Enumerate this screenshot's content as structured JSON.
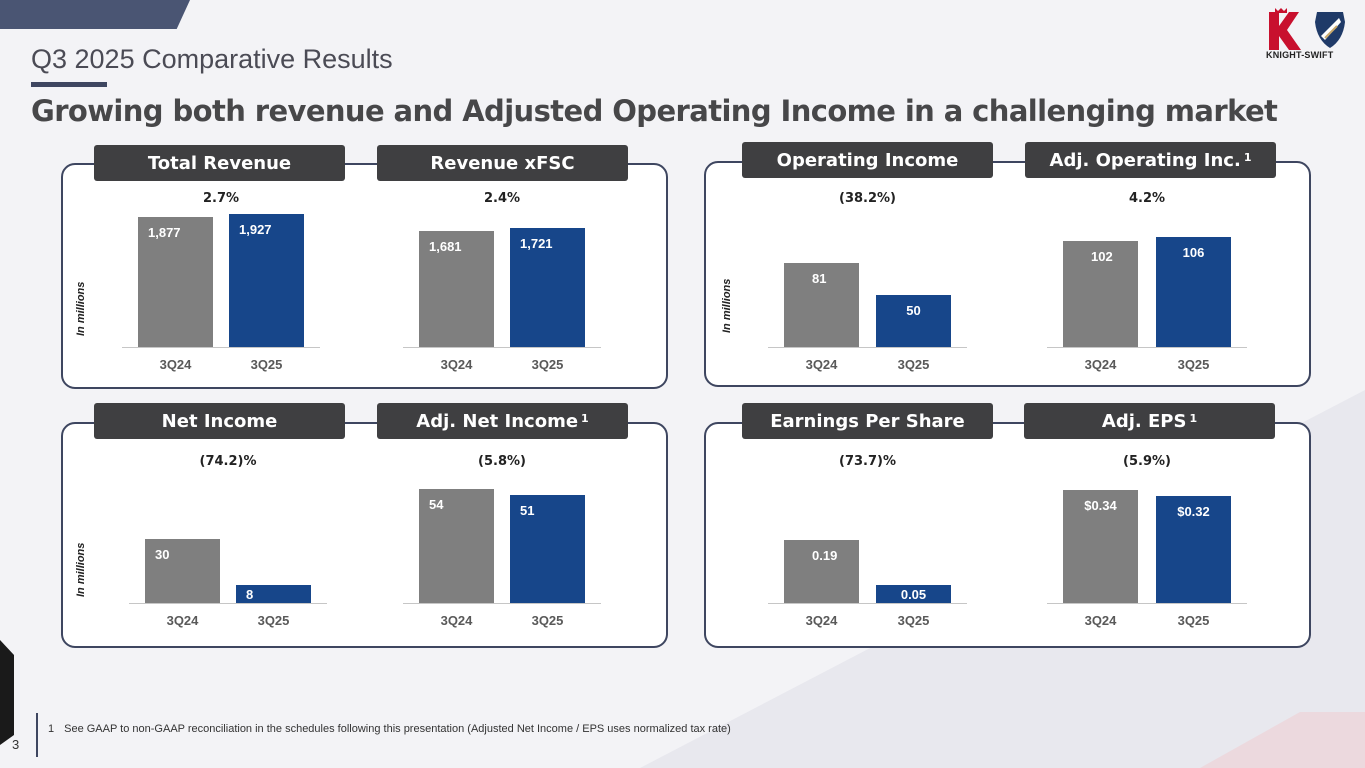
{
  "slide": {
    "title": "Q3 2025 Comparative Results",
    "headline": "Growing both revenue and Adjusted Operating Income in a challenging market",
    "logo_text": "KNIGHT-SWIFT",
    "page_number": "3",
    "footnote_number": "1",
    "footnote_text": "See GAAP to non-GAAP reconciliation in the schedules following this presentation (Adjusted Net Income / EPS uses normalized tax rate)",
    "units_label": "In millions",
    "footnote_marker": "1"
  },
  "colors": {
    "prior": "#7f7f7f",
    "current": "#17468a",
    "label_bg": "#3f3f41",
    "panel_border": "#3e4660"
  },
  "chart_data": [
    {
      "type": "bar",
      "title": "Total Revenue",
      "change": "2.7%",
      "categories": [
        "3Q24",
        "3Q25"
      ],
      "values": [
        1877,
        1927
      ],
      "value_labels": [
        "1,877",
        "1,927"
      ],
      "unit": "In millions",
      "ylim": [
        0,
        1950
      ]
    },
    {
      "type": "bar",
      "title": "Revenue xFSC",
      "change": "2.4%",
      "categories": [
        "3Q24",
        "3Q25"
      ],
      "values": [
        1681,
        1721
      ],
      "value_labels": [
        "1,681",
        "1,721"
      ],
      "unit": "In millions",
      "ylim": [
        0,
        1950
      ]
    },
    {
      "type": "bar",
      "title": "Operating Income",
      "change": "(38.2%)",
      "categories": [
        "3Q24",
        "3Q25"
      ],
      "values": [
        81,
        50
      ],
      "value_labels": [
        "81",
        "50"
      ],
      "unit": "In millions",
      "ylim": [
        0,
        130
      ]
    },
    {
      "type": "bar",
      "title": "Adj. Operating Inc.",
      "footnote": "1",
      "change": "4.2%",
      "categories": [
        "3Q24",
        "3Q25"
      ],
      "values": [
        102,
        106
      ],
      "value_labels": [
        "102",
        "106"
      ],
      "unit": "In millions",
      "ylim": [
        0,
        130
      ]
    },
    {
      "type": "bar",
      "title": "Net Income",
      "change": "(74.2)%",
      "categories": [
        "3Q24",
        "3Q25"
      ],
      "values": [
        30,
        8
      ],
      "value_labels": [
        "30",
        "8"
      ],
      "unit": "In millions",
      "ylim": [
        0,
        59
      ]
    },
    {
      "type": "bar",
      "title": "Adj. Net Income",
      "footnote": "1",
      "change": "(5.8%)",
      "categories": [
        "3Q24",
        "3Q25"
      ],
      "values": [
        54,
        51
      ],
      "value_labels": [
        "54",
        "51"
      ],
      "unit": "In millions",
      "ylim": [
        0,
        59
      ]
    },
    {
      "type": "bar",
      "title": "Earnings Per Share",
      "change": "(73.7)%",
      "categories": [
        "3Q24",
        "3Q25"
      ],
      "values": [
        0.19,
        0.05
      ],
      "value_labels": [
        "0.19",
        "0.05"
      ],
      "ylim": [
        0,
        0.375
      ]
    },
    {
      "type": "bar",
      "title": "Adj. EPS",
      "footnote": "1",
      "change": "(5.9%)",
      "categories": [
        "3Q24",
        "3Q25"
      ],
      "values": [
        0.34,
        0.32
      ],
      "value_labels": [
        "$0.34",
        "$0.32"
      ],
      "ylim": [
        0,
        0.375
      ]
    }
  ]
}
